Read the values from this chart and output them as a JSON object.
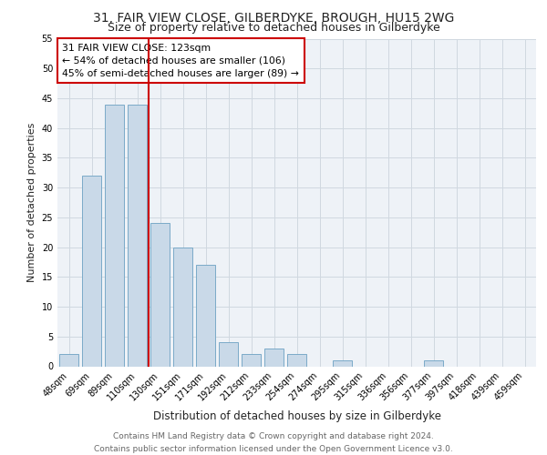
{
  "title_line1": "31, FAIR VIEW CLOSE, GILBERDYKE, BROUGH, HU15 2WG",
  "title_line2": "Size of property relative to detached houses in Gilberdyke",
  "xlabel": "Distribution of detached houses by size in Gilberdyke",
  "ylabel": "Number of detached properties",
  "categories": [
    "48sqm",
    "69sqm",
    "89sqm",
    "110sqm",
    "130sqm",
    "151sqm",
    "171sqm",
    "192sqm",
    "212sqm",
    "233sqm",
    "254sqm",
    "274sqm",
    "295sqm",
    "315sqm",
    "336sqm",
    "356sqm",
    "377sqm",
    "397sqm",
    "418sqm",
    "439sqm",
    "459sqm"
  ],
  "values": [
    2,
    32,
    44,
    44,
    24,
    20,
    17,
    4,
    2,
    3,
    2,
    0,
    1,
    0,
    0,
    0,
    1,
    0,
    0,
    0,
    0
  ],
  "bar_color": "#c9d9e8",
  "bar_edge_color": "#7aaac8",
  "vline_color": "#cc0000",
  "annotation_text": "31 FAIR VIEW CLOSE: 123sqm\n← 54% of detached houses are smaller (106)\n45% of semi-detached houses are larger (89) →",
  "annotation_box_color": "#ffffff",
  "annotation_box_edge": "#cc0000",
  "ylim": [
    0,
    55
  ],
  "yticks": [
    0,
    5,
    10,
    15,
    20,
    25,
    30,
    35,
    40,
    45,
    50,
    55
  ],
  "grid_color": "#d0d8e0",
  "bg_color": "#eef2f7",
  "footer": "Contains HM Land Registry data © Crown copyright and database right 2024.\nContains public sector information licensed under the Open Government Licence v3.0.",
  "title_fontsize": 10,
  "subtitle_fontsize": 9,
  "tick_fontsize": 7,
  "ylabel_fontsize": 8,
  "xlabel_fontsize": 8.5,
  "footer_fontsize": 6.5
}
